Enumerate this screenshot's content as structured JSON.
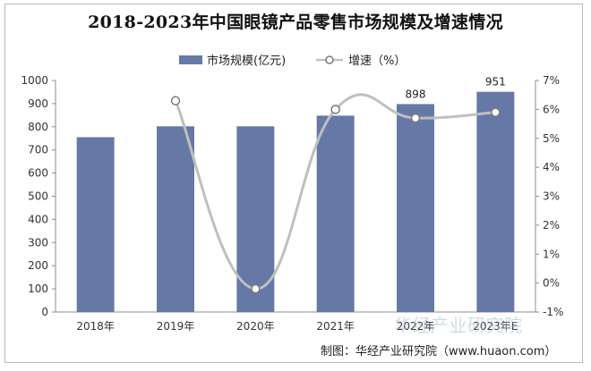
{
  "chart_data": {
    "type": "bar+line",
    "title": "2018-2023年中国眼镜产品零售市场规模及增速情况",
    "categories": [
      "2018年",
      "2019年",
      "2020年",
      "2021年",
      "2022年",
      "2023年E"
    ],
    "series": [
      {
        "name": "市场规模(亿元)",
        "type": "bar",
        "axis": "left",
        "values": [
          755,
          802,
          802,
          848,
          898,
          951
        ],
        "data_labels": [
          "",
          "",
          "",
          "",
          "898",
          "951"
        ]
      },
      {
        "name": "增速（%）",
        "type": "line",
        "axis": "right",
        "values": [
          null,
          6.3,
          -0.2,
          6.0,
          5.7,
          5.9
        ]
      }
    ],
    "y_left": {
      "ylim": [
        0,
        1000
      ],
      "ticks": [
        "0",
        "100",
        "200",
        "300",
        "400",
        "500",
        "600",
        "700",
        "800",
        "900",
        "1000"
      ]
    },
    "y_right": {
      "ylim": [
        -1,
        7
      ],
      "ticks": [
        "-1%",
        "0%",
        "1%",
        "2%",
        "3%",
        "4%",
        "5%",
        "6%",
        "7%"
      ]
    },
    "grid": false,
    "legend_position": "top-center",
    "colors": {
      "bar": "#6679a6",
      "line": "#bfbfbf",
      "marker_fill": "#ffffff",
      "marker_stroke": "#7a7a7a"
    }
  },
  "footer": {
    "source": "制图：华经产业研究院（www.huaon.com）",
    "watermark": "华经产业研究院"
  }
}
